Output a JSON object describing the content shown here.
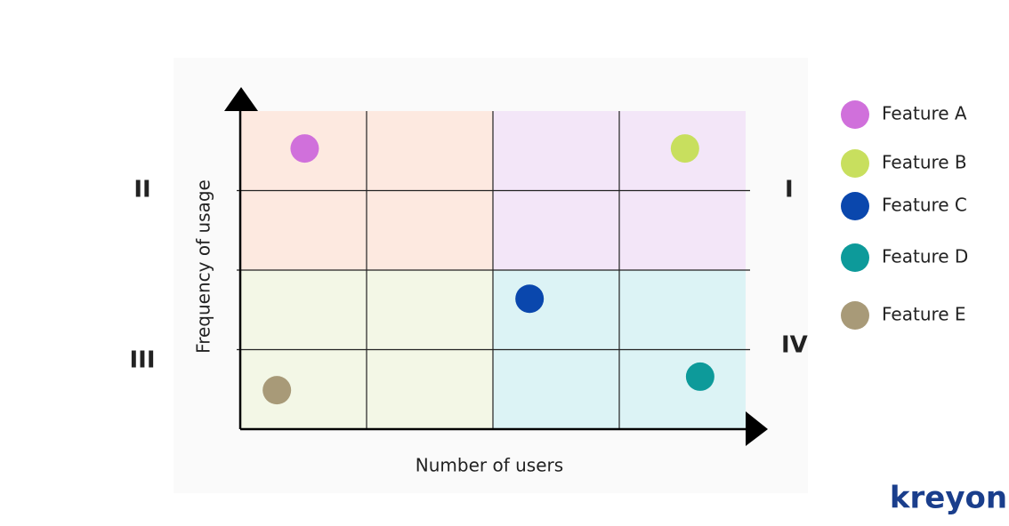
{
  "chart_data": {
    "type": "scatter",
    "x_label": "Number of users",
    "y_label": "Frequency of usage",
    "xlim": [
      0,
      4
    ],
    "ylim": [
      0,
      4
    ],
    "quadrants": [
      {
        "label": "I",
        "corner": "top-right",
        "color": "#f3e6f8"
      },
      {
        "label": "II",
        "corner": "top-left",
        "color": "#fde9e0"
      },
      {
        "label": "III",
        "corner": "bottom-left",
        "color": "#f3f7e6"
      },
      {
        "label": "IV",
        "corner": "bottom-right",
        "color": "#dcf3f5"
      }
    ],
    "series": [
      {
        "name": "Feature A",
        "color": "#d070db",
        "x": [
          0.51
        ],
        "values": [
          3.53
        ]
      },
      {
        "name": "Feature B",
        "color": "#c8df5e",
        "x": [
          3.52
        ],
        "values": [
          3.53
        ]
      },
      {
        "name": "Feature C",
        "color": "#0a47ad",
        "x": [
          2.29
        ],
        "values": [
          1.64
        ]
      },
      {
        "name": "Feature D",
        "color": "#0d9a9a",
        "x": [
          3.64
        ],
        "values": [
          0.66
        ]
      },
      {
        "name": "Feature E",
        "color": "#a89a78",
        "x": [
          0.29
        ],
        "values": [
          0.49
        ]
      }
    ],
    "brand": "kreyon"
  }
}
